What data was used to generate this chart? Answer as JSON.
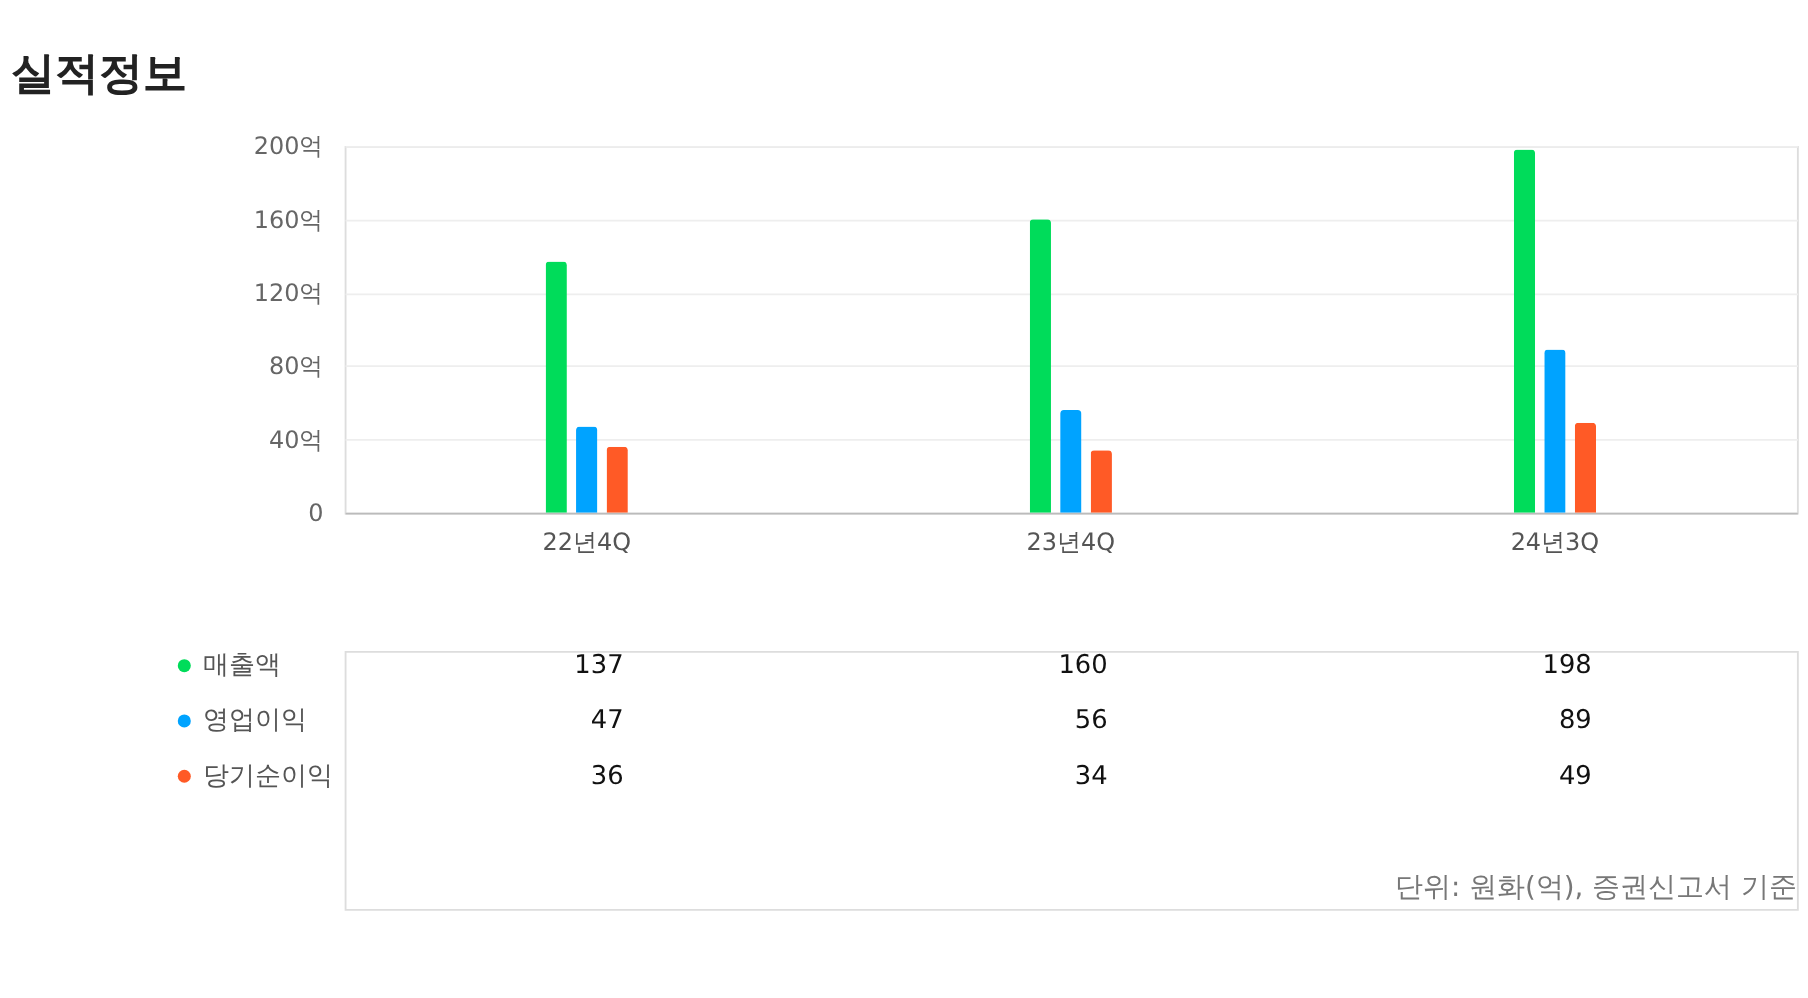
{
  "chart_data": {
    "type": "bar",
    "title": "실적정보",
    "categories": [
      "22년4Q",
      "23년4Q",
      "24년3Q"
    ],
    "series": [
      {
        "name": "매출액",
        "color": "#00dc5a",
        "values": [
          137,
          160,
          198
        ]
      },
      {
        "name": "영업이익",
        "color": "#00a3ff",
        "values": [
          47,
          56,
          89
        ]
      },
      {
        "name": "당기순이익",
        "color": "#ff5a26",
        "values": [
          36,
          34,
          49
        ]
      }
    ],
    "ylim": [
      0,
      200
    ],
    "yticks": [
      0,
      {
        "value": 40,
        "label": "40억"
      },
      {
        "value": 80,
        "label": "80억"
      },
      {
        "value": 120,
        "label": "120억"
      },
      {
        "value": 160,
        "label": "160억"
      },
      {
        "value": 200,
        "label": "200억"
      }
    ],
    "grid": "y",
    "legend": "bottom",
    "data_labels": true,
    "annotations": [
      "단위: 원화(억), 증권신고서 기준"
    ]
  }
}
